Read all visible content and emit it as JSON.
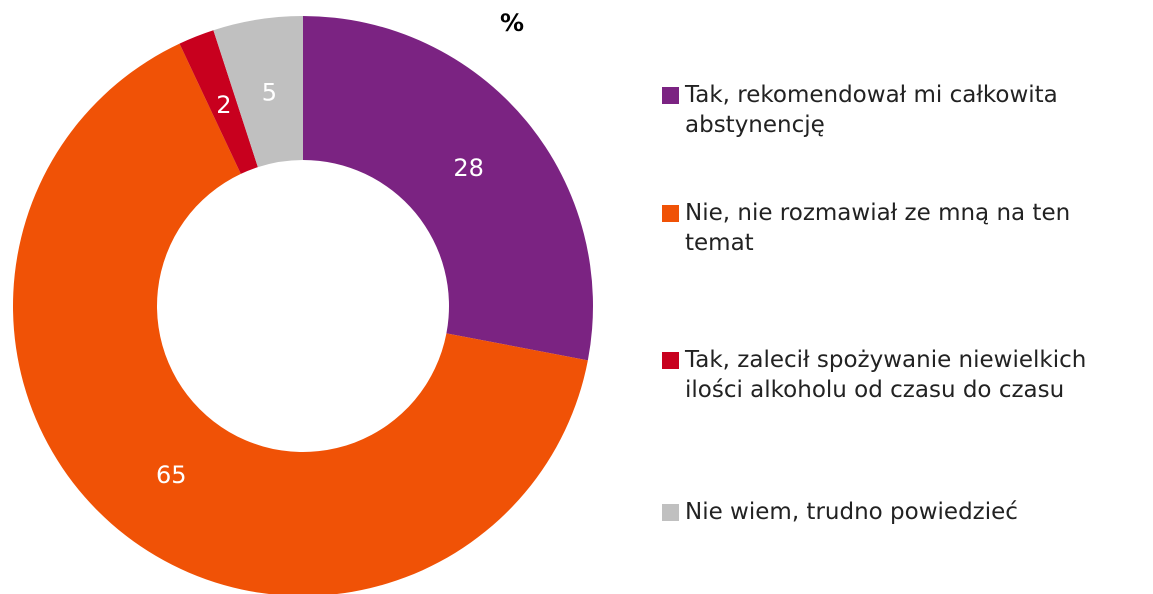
{
  "chart_data": {
    "type": "pie",
    "title": "%",
    "categories": [
      "Tak, rekomendował mi całkowita abstynencję",
      "Nie, nie rozmawiał ze mną na ten temat",
      "Tak, zalecił spożywanie niewielkich ilości alkoholu od czasu do czasu",
      "Nie wiem, trudno powiedzieć"
    ],
    "values": [
      28,
      65,
      2,
      5
    ],
    "colors": [
      "#7b2382",
      "#f05206",
      "#c8001e",
      "#c0c0c0"
    ],
    "donut": true
  }
}
